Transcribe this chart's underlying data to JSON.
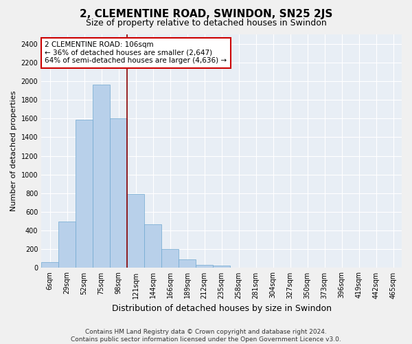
{
  "title": "2, CLEMENTINE ROAD, SWINDON, SN25 2JS",
  "subtitle": "Size of property relative to detached houses in Swindon",
  "xlabel": "Distribution of detached houses by size in Swindon",
  "ylabel": "Number of detached properties",
  "footer_line1": "Contains HM Land Registry data © Crown copyright and database right 2024.",
  "footer_line2": "Contains public sector information licensed under the Open Government Licence v3.0.",
  "categories": [
    "6sqm",
    "29sqm",
    "52sqm",
    "75sqm",
    "98sqm",
    "121sqm",
    "144sqm",
    "166sqm",
    "189sqm",
    "212sqm",
    "235sqm",
    "258sqm",
    "281sqm",
    "304sqm",
    "327sqm",
    "350sqm",
    "373sqm",
    "396sqm",
    "419sqm",
    "442sqm",
    "465sqm"
  ],
  "bar_heights": [
    60,
    500,
    1590,
    1960,
    1600,
    790,
    470,
    200,
    90,
    35,
    25,
    0,
    0,
    0,
    0,
    0,
    0,
    0,
    0,
    0,
    0
  ],
  "bar_color": "#b8d0ea",
  "bar_edgecolor": "#6fa8d0",
  "vline_x_index": 4,
  "vline_color": "#8b0000",
  "annotation_line1": "2 CLEMENTINE ROAD: 106sqm",
  "annotation_line2": "← 36% of detached houses are smaller (2,647)",
  "annotation_line3": "64% of semi-detached houses are larger (4,636) →",
  "annotation_box_facecolor": "#ffffff",
  "annotation_box_edgecolor": "#cc0000",
  "ylim": [
    0,
    2500
  ],
  "yticks": [
    0,
    200,
    400,
    600,
    800,
    1000,
    1200,
    1400,
    1600,
    1800,
    2000,
    2200,
    2400
  ],
  "fig_bg_color": "#f0f0f0",
  "plot_bg_color": "#e8eef5",
  "grid_color": "#ffffff",
  "title_fontsize": 11,
  "subtitle_fontsize": 9,
  "xlabel_fontsize": 9,
  "ylabel_fontsize": 8,
  "tick_fontsize": 7,
  "annotation_fontsize": 7.5,
  "footer_fontsize": 6.5
}
